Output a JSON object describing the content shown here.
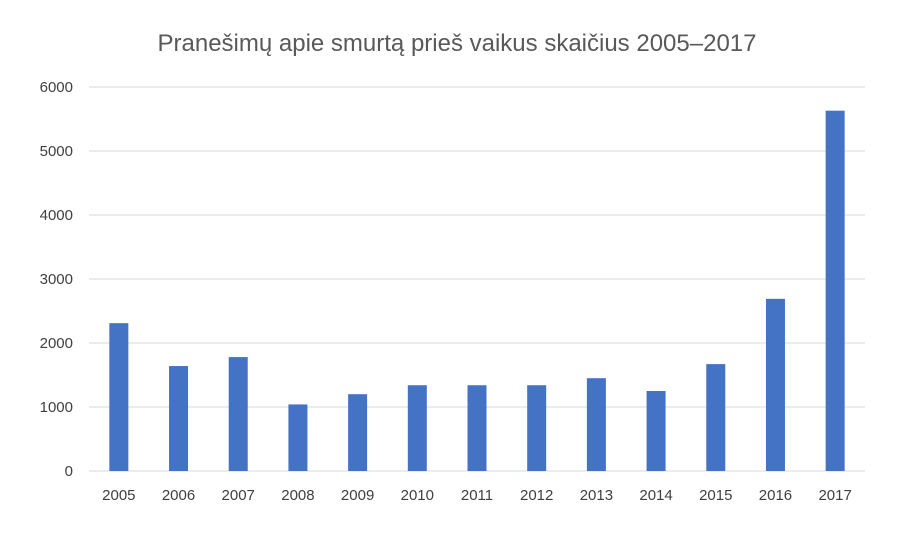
{
  "chart_data": {
    "type": "bar",
    "title": "Pranešimų apie smurtą prieš vaikus skaičius 2005–2017",
    "xlabel": "",
    "ylabel": "",
    "categories": [
      "2005",
      "2006",
      "2007",
      "2008",
      "2009",
      "2010",
      "2011",
      "2012",
      "2013",
      "2014",
      "2015",
      "2016",
      "2017"
    ],
    "values": [
      2310,
      1640,
      1780,
      1040,
      1200,
      1340,
      1340,
      1340,
      1450,
      1250,
      1670,
      2690,
      5630
    ],
    "ylim": [
      0,
      6000
    ],
    "yticks": [
      "0",
      "1000",
      "2000",
      "3000",
      "4000",
      "5000",
      "6000"
    ],
    "grid": true,
    "legend": "none",
    "colors": {
      "bar": "#4472C4",
      "grid": "#D9D9D9",
      "axis_text": "#404040",
      "title": "#595959"
    }
  }
}
